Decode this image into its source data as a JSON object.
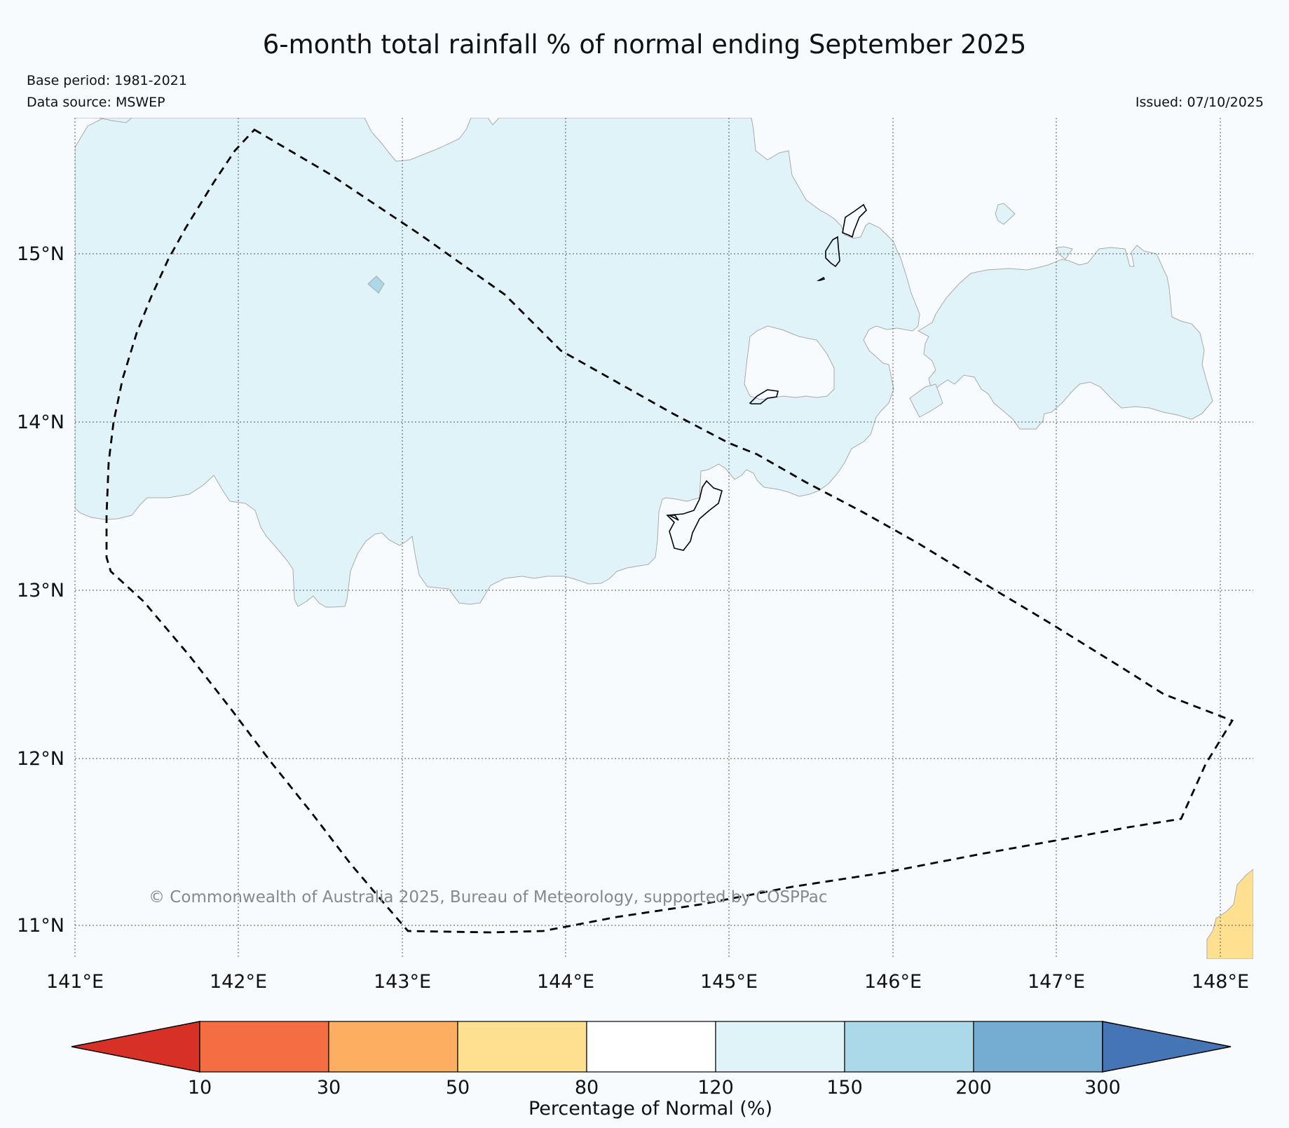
{
  "map": {
    "title": "6-month total rainfall % of normal ending September 2025",
    "base_period": "Base period: 1981-2021",
    "data_source": "Data source: MSWEP",
    "issued": "Issued: 07/10/2025",
    "copyright": "© Commonwealth of Australia 2025, Bureau of Meteorology, supported by COSPPac",
    "lon_range": [
      141.0,
      148.2
    ],
    "lat_range": [
      10.8,
      15.8
    ],
    "lon_ticks": [
      "141°E",
      "142°E",
      "143°E",
      "144°E",
      "145°E",
      "146°E",
      "147°E",
      "148°E"
    ],
    "lat_ticks": [
      "15°N",
      "14°N",
      "13°N",
      "12°N",
      "11°N"
    ]
  },
  "legend": {
    "title": "Percentage of Normal (%)",
    "tick_labels": [
      "10",
      "30",
      "50",
      "80",
      "120",
      "150",
      "200",
      "300"
    ],
    "bins": [
      {
        "range": "<10",
        "color": "#d73027"
      },
      {
        "range": "10-30",
        "color": "#f46d43"
      },
      {
        "range": "30-50",
        "color": "#fdae61"
      },
      {
        "range": "50-80",
        "color": "#fee090"
      },
      {
        "range": "80-120",
        "color": "#ffffff"
      },
      {
        "range": "120-150",
        "color": "#e0f3f8"
      },
      {
        "range": "150-200",
        "color": "#abd9e9"
      },
      {
        "range": "200-300",
        "color": "#74add1"
      },
      {
        "range": ">300",
        "color": "#4575b4"
      }
    ]
  },
  "colors": {
    "background": "#f7fbfe",
    "zone_120_150": "#e0f3f8",
    "zone_150_200": "#abd9e9",
    "zone_50_80": "#fee090"
  }
}
